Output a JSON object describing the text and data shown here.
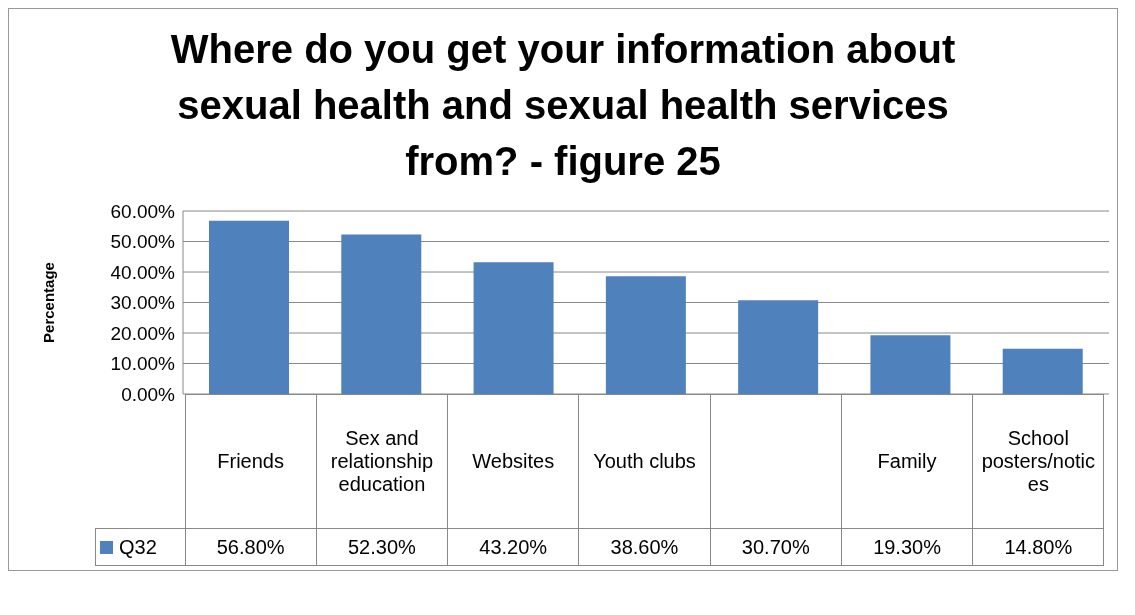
{
  "chart_data": {
    "type": "bar",
    "title": "Where do you get your information about sexual health and sexual health services from? - figure 25",
    "ylabel": "Percentage",
    "categories": [
      "Friends",
      "Sex and relationship education",
      "Websites",
      "Youth clubs",
      null,
      "Family",
      "School posters/notices"
    ],
    "series": [
      {
        "name": "Q32",
        "color": "#4f81bd",
        "values": [
          56.8,
          52.3,
          43.2,
          38.6,
          30.7,
          19.3,
          14.8
        ],
        "value_labels": [
          "56.80%",
          "52.30%",
          "43.20%",
          "38.60%",
          "30.70%",
          "19.30%",
          "14.80%"
        ]
      }
    ],
    "ylim": [
      0,
      60
    ],
    "yticks": [
      {
        "value": 0,
        "label": "0.00%"
      },
      {
        "value": 10,
        "label": "10.00%"
      },
      {
        "value": 20,
        "label": "20.00%"
      },
      {
        "value": 30,
        "label": "30.00%"
      },
      {
        "value": 40,
        "label": "40.00%"
      },
      {
        "value": 50,
        "label": "50.00%"
      },
      {
        "value": 60,
        "label": "60.00%"
      }
    ],
    "grid": "y",
    "legend": "bottom"
  }
}
